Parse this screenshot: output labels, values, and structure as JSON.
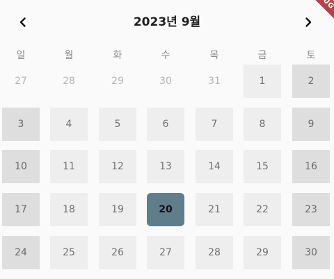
{
  "header": {
    "title": "2023년 9월",
    "prev_icon": "chevron-left-icon",
    "next_icon": "chevron-right-icon",
    "debug_banner": "DEBUG"
  },
  "weekdays": [
    "일",
    "월",
    "화",
    "수",
    "목",
    "금",
    "토"
  ],
  "weeks": [
    [
      {
        "day": "27",
        "kind": "empty"
      },
      {
        "day": "28",
        "kind": "empty"
      },
      {
        "day": "29",
        "kind": "empty"
      },
      {
        "day": "30",
        "kind": "empty"
      },
      {
        "day": "31",
        "kind": "empty"
      },
      {
        "day": "1",
        "kind": "weekday"
      },
      {
        "day": "2",
        "kind": "weekend"
      }
    ],
    [
      {
        "day": "3",
        "kind": "weekend"
      },
      {
        "day": "4",
        "kind": "weekday"
      },
      {
        "day": "5",
        "kind": "weekday"
      },
      {
        "day": "6",
        "kind": "weekday"
      },
      {
        "day": "7",
        "kind": "weekday"
      },
      {
        "day": "8",
        "kind": "weekday"
      },
      {
        "day": "9",
        "kind": "weekend"
      }
    ],
    [
      {
        "day": "10",
        "kind": "weekend"
      },
      {
        "day": "11",
        "kind": "weekday"
      },
      {
        "day": "12",
        "kind": "weekday"
      },
      {
        "day": "13",
        "kind": "weekday"
      },
      {
        "day": "14",
        "kind": "weekday"
      },
      {
        "day": "15",
        "kind": "weekday"
      },
      {
        "day": "16",
        "kind": "weekend"
      }
    ],
    [
      {
        "day": "17",
        "kind": "weekend"
      },
      {
        "day": "18",
        "kind": "weekday"
      },
      {
        "day": "19",
        "kind": "weekday"
      },
      {
        "day": "20",
        "kind": "selected"
      },
      {
        "day": "21",
        "kind": "weekday"
      },
      {
        "day": "22",
        "kind": "weekday"
      },
      {
        "day": "23",
        "kind": "weekend"
      }
    ],
    [
      {
        "day": "24",
        "kind": "weekend"
      },
      {
        "day": "25",
        "kind": "weekday"
      },
      {
        "day": "26",
        "kind": "weekday"
      },
      {
        "day": "27",
        "kind": "weekday"
      },
      {
        "day": "28",
        "kind": "weekday"
      },
      {
        "day": "29",
        "kind": "weekday"
      },
      {
        "day": "30",
        "kind": "weekend"
      }
    ]
  ],
  "colors": {
    "selected": "#607d8b",
    "weekday_cell": "#eeeeee",
    "weekend_cell": "#dedede",
    "debug_banner": "#b4424a"
  }
}
